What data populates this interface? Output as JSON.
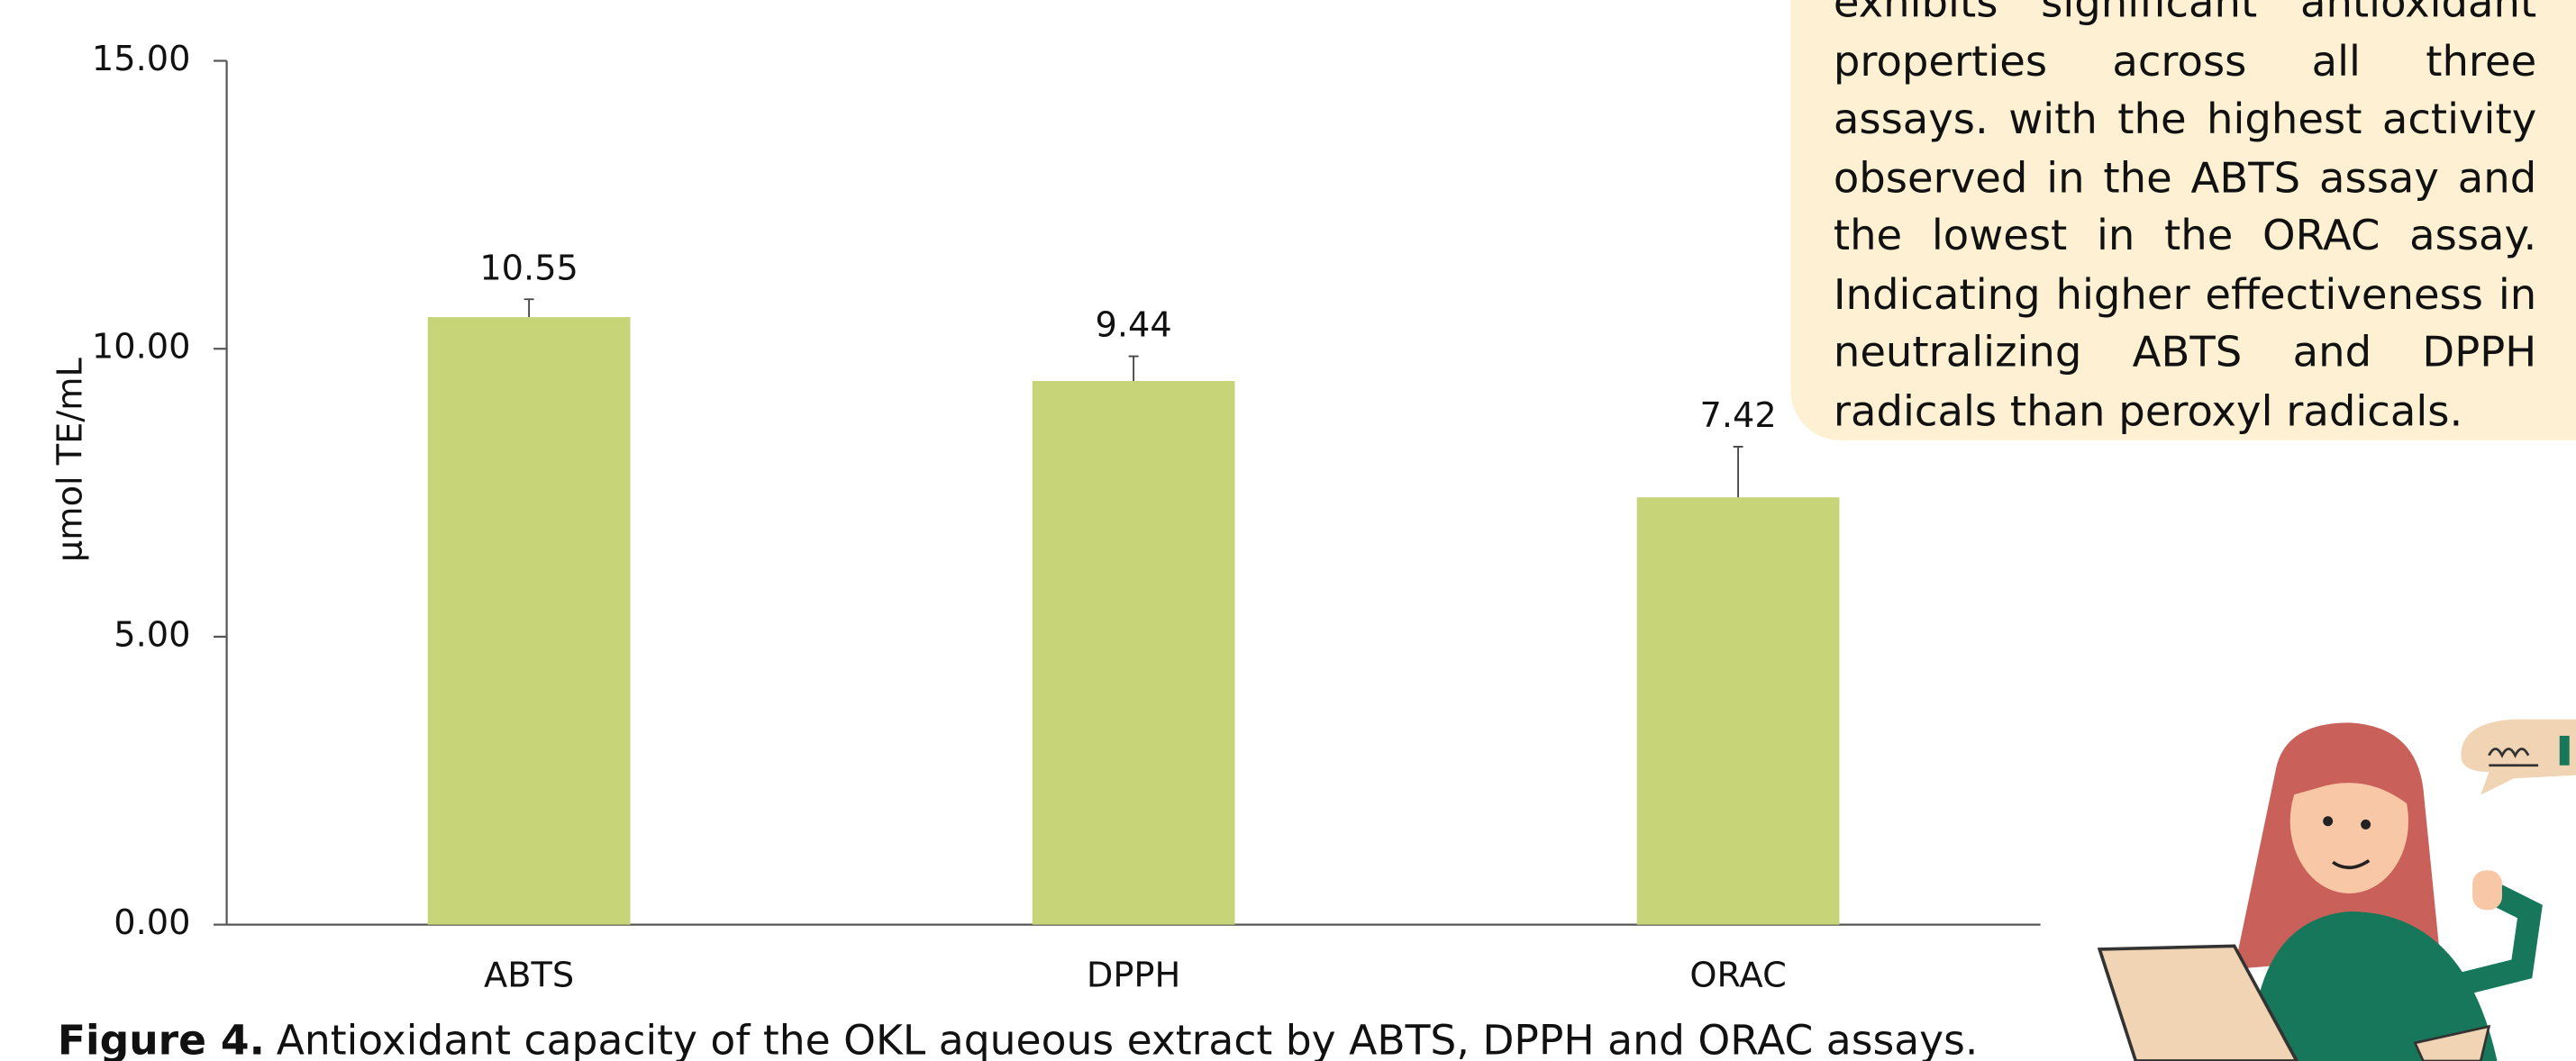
{
  "chart_data": {
    "type": "bar",
    "ylabel": "µmol TE/mL",
    "categories": [
      "ABTS",
      "DPPH",
      "ORAC"
    ],
    "values": [
      10.55,
      9.44,
      7.42
    ],
    "errors": [
      0.31,
      0.43,
      0.88
    ],
    "color": "#c8d478",
    "ylim": [
      0,
      15
    ],
    "yticks": [
      {
        "value": 0,
        "label": "0.00"
      },
      {
        "value": 5,
        "label": "5.00"
      },
      {
        "value": 10,
        "label": "10.00"
      },
      {
        "value": 15,
        "label": "15.00"
      }
    ],
    "grid": false,
    "caption_label": "Figure 4.",
    "caption": "Antioxidant capacity of the OKL aqueous extract by ABTS, DPPH and ORAC assays.",
    "annotation": "exhibits significant antioxidant properties across all three assays. with the highest activity observed in the ABTS assay and the lowest in the ORAC assay. Indicating higher effectiveness in neutralizing ABTS and DPPH radicals than peroxyl radicals."
  }
}
